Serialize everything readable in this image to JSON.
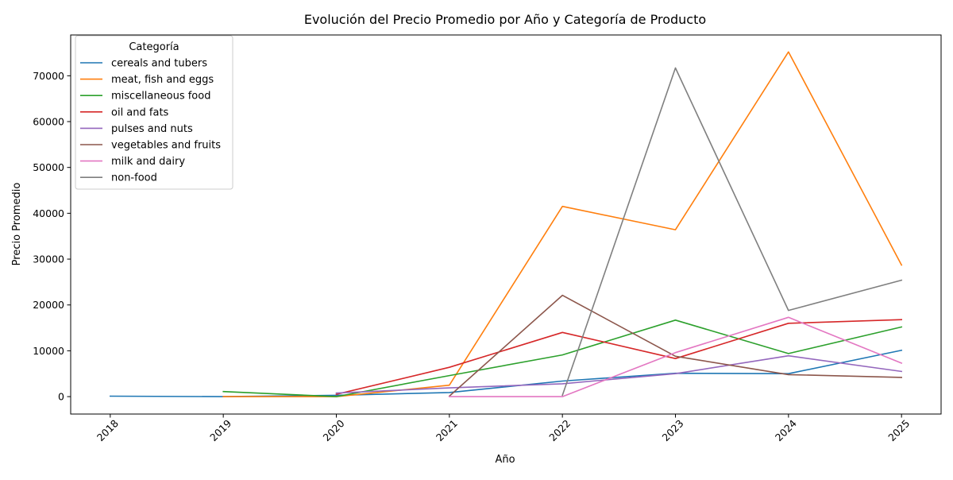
{
  "chart_data": {
    "type": "line",
    "title": "Evolución del Precio Promedio por Año y Categoría de Producto",
    "xlabel": "Año",
    "ylabel": "Precio Promedio",
    "x": [
      "2018",
      "2019",
      "2020",
      "2021",
      "2022",
      "2023",
      "2024",
      "2025"
    ],
    "xlim": [
      2017.65,
      2025.35
    ],
    "ylim": [
      -3800,
      78900
    ],
    "yticks": [
      0,
      10000,
      20000,
      30000,
      40000,
      50000,
      60000,
      70000
    ],
    "ytick_labels": [
      "0",
      "10000",
      "20000",
      "30000",
      "40000",
      "50000",
      "60000",
      "70000"
    ],
    "grid": false,
    "legend": {
      "title": "Categoría",
      "placement": "upper-left"
    },
    "series": [
      {
        "name": "cereals and tubers",
        "color": "#1f77b4",
        "points": [
          [
            2018,
            100
          ],
          [
            2019,
            0
          ],
          [
            2020,
            300
          ],
          [
            2021,
            900
          ],
          [
            2022,
            3400
          ],
          [
            2023,
            5100
          ],
          [
            2024,
            5000
          ],
          [
            2025,
            10100
          ]
        ]
      },
      {
        "name": "meat, fish and eggs",
        "color": "#ff7f0e",
        "points": [
          [
            2019,
            0
          ],
          [
            2020,
            0
          ],
          [
            2021,
            2500
          ],
          [
            2022,
            41500
          ],
          [
            2023,
            36400
          ],
          [
            2024,
            75200
          ],
          [
            2025,
            28700
          ]
        ]
      },
      {
        "name": "miscellaneous food",
        "color": "#2ca02c",
        "points": [
          [
            2019,
            1100
          ],
          [
            2020,
            0
          ],
          [
            2021,
            4600
          ],
          [
            2022,
            9100
          ],
          [
            2023,
            16700
          ],
          [
            2024,
            9400
          ],
          [
            2025,
            15200
          ]
        ]
      },
      {
        "name": "oil and fats",
        "color": "#d62728",
        "points": [
          [
            2020,
            500
          ],
          [
            2021,
            6400
          ],
          [
            2022,
            14000
          ],
          [
            2023,
            8300
          ],
          [
            2024,
            16000
          ],
          [
            2025,
            16800
          ]
        ]
      },
      {
        "name": "pulses and nuts",
        "color": "#9467bd",
        "points": [
          [
            2020,
            800
          ],
          [
            2021,
            1900
          ],
          [
            2022,
            2800
          ],
          [
            2023,
            5000
          ],
          [
            2024,
            8900
          ],
          [
            2025,
            5500
          ]
        ]
      },
      {
        "name": "vegetables and fruits",
        "color": "#8c564b",
        "points": [
          [
            2021,
            100
          ],
          [
            2022,
            22100
          ],
          [
            2023,
            8800
          ],
          [
            2024,
            4800
          ],
          [
            2025,
            4200
          ]
        ]
      },
      {
        "name": "milk and dairy",
        "color": "#e377c2",
        "points": [
          [
            2021,
            0
          ],
          [
            2022,
            0
          ],
          [
            2023,
            9600
          ],
          [
            2024,
            17300
          ],
          [
            2025,
            7300
          ]
        ]
      },
      {
        "name": "non-food",
        "color": "#7f7f7f",
        "points": [
          [
            2022,
            300
          ],
          [
            2023,
            71700
          ],
          [
            2024,
            18800
          ],
          [
            2025,
            25400
          ]
        ]
      }
    ]
  }
}
